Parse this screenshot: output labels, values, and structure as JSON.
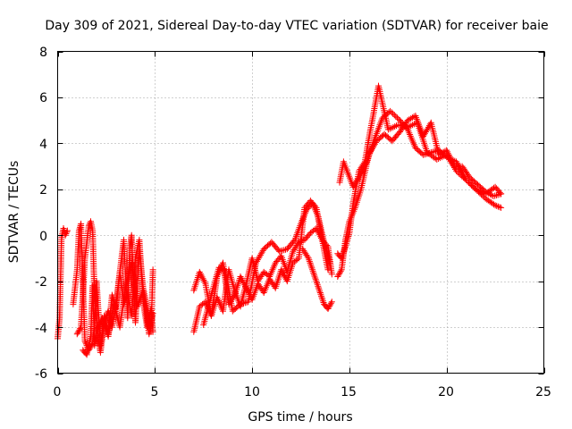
{
  "chart_data": {
    "type": "scatter",
    "title": "Day 309 of 2021, Sidereal Day-to-day VTEC variation (SDTVAR) for receiver baie",
    "xlabel": "GPS time / hours",
    "ylabel": "SDTVAR / TECUs",
    "xlim": [
      0,
      25
    ],
    "ylim": [
      -6,
      8
    ],
    "grid": true,
    "marker": "+",
    "colors": {
      "series": "#ff0000"
    },
    "x_ticks": [
      0,
      5,
      10,
      15,
      20,
      25
    ],
    "x_tick_labels": [
      "0",
      "5",
      "10",
      "15",
      "20",
      "25"
    ],
    "y_ticks": [
      -6,
      -4,
      -2,
      0,
      2,
      4,
      6,
      8
    ],
    "y_tick_labels": [
      "-6",
      "-4",
      "-2",
      "0",
      "2",
      "4",
      "6",
      "8"
    ],
    "segments": [
      {
        "name": "early-1",
        "x": [
          0.0,
          0.1,
          0.2,
          0.3,
          0.4,
          0.5
        ],
        "y": [
          -4.5,
          -3.6,
          -0.1,
          0.3,
          0.0,
          0.2
        ]
      },
      {
        "name": "early-2",
        "x": [
          0.8,
          1.0,
          1.1,
          1.2,
          1.4,
          1.6,
          1.8,
          1.9,
          2.0,
          2.2,
          2.4,
          2.6,
          2.8,
          3.0,
          3.2,
          3.4,
          3.5,
          3.6,
          3.7,
          3.8,
          3.9,
          4.0,
          4.2,
          4.4,
          4.6,
          4.8,
          4.9
        ],
        "y": [
          -3.0,
          -1.5,
          0.2,
          0.5,
          -4.6,
          -5.0,
          -4.7,
          -3.8,
          -2.0,
          -4.8,
          -3.5,
          -4.3,
          -2.6,
          -3.2,
          -1.6,
          -0.2,
          -1.9,
          -3.6,
          -0.6,
          0.0,
          -1.9,
          -3.8,
          -0.7,
          -2.3,
          -3.2,
          -4.2,
          -1.5
        ]
      },
      {
        "name": "early-3",
        "x": [
          1.0,
          1.2,
          1.4,
          1.6,
          1.7,
          1.8,
          1.9,
          2.0,
          2.1,
          2.2,
          2.4,
          2.6,
          2.8,
          3.0,
          3.2,
          3.4,
          3.6,
          3.8,
          4.0,
          4.2,
          4.4,
          4.6,
          4.8,
          4.9
        ],
        "y": [
          -4.3,
          -4.0,
          -1.0,
          0.4,
          0.6,
          0.2,
          -2.8,
          -3.6,
          -4.6,
          -5.1,
          -3.8,
          -3.3,
          -4.0,
          -3.0,
          -1.6,
          -3.0,
          -2.5,
          -3.5,
          -1.0,
          -0.2,
          -2.9,
          -4.0,
          -3.2,
          -4.2
        ]
      },
      {
        "name": "early-4",
        "x": [
          1.3,
          1.5,
          1.7,
          1.8,
          1.9,
          2.0,
          2.3,
          2.6,
          2.9,
          3.2,
          3.5,
          3.8,
          4.1,
          4.4,
          4.7,
          4.9
        ],
        "y": [
          -5.0,
          -5.2,
          -4.4,
          -2.2,
          -4.8,
          -4.2,
          -3.6,
          -4.4,
          -3.0,
          -4.0,
          -2.2,
          -1.2,
          -3.1,
          -2.4,
          -4.3,
          -3.4
        ]
      },
      {
        "name": "day-1",
        "x": [
          7.0,
          7.3,
          7.6,
          7.9,
          8.2,
          8.5,
          8.8,
          9.1,
          9.4,
          9.7,
          10.0,
          10.3,
          10.6,
          10.9,
          11.2,
          11.5,
          11.8,
          12.1,
          12.4,
          12.7,
          13.0,
          13.3,
          13.6,
          13.9,
          14.1
        ],
        "y": [
          -4.2,
          -3.1,
          -2.9,
          -3.5,
          -2.7,
          -3.3,
          -1.5,
          -2.4,
          -3.1,
          -2.1,
          -1.0,
          -2.0,
          -1.6,
          -1.8,
          -1.2,
          -0.9,
          -1.6,
          -0.7,
          -0.3,
          -0.2,
          0.1,
          0.3,
          -0.2,
          -0.5,
          -1.7
        ]
      },
      {
        "name": "day-2",
        "x": [
          7.0,
          7.3,
          7.6,
          7.9,
          8.2,
          8.5,
          8.8,
          9.1,
          9.4,
          9.7,
          10.0,
          10.3,
          10.6,
          10.9,
          11.2,
          11.5,
          11.8,
          12.1,
          12.4,
          12.7,
          13.0,
          13.3,
          13.6,
          13.9
        ],
        "y": [
          -2.4,
          -1.6,
          -2.1,
          -3.5,
          -1.8,
          -1.2,
          -3.0,
          -2.6,
          -1.8,
          -2.3,
          -2.8,
          -2.1,
          -2.5,
          -1.9,
          -2.3,
          -1.5,
          -2.0,
          -1.2,
          -1.0,
          1.2,
          1.5,
          1.2,
          -0.2,
          -1.5
        ]
      },
      {
        "name": "day-3",
        "x": [
          7.5,
          8.0,
          8.3,
          8.6,
          9.0,
          9.4,
          9.8,
          10.2,
          10.6,
          11.0,
          11.4,
          11.8,
          12.2,
          12.5,
          12.8,
          13.1,
          13.4,
          13.7,
          14.0
        ],
        "y": [
          -3.9,
          -2.3,
          -1.4,
          -1.5,
          -3.3,
          -3.0,
          -2.9,
          -1.2,
          -0.6,
          -0.3,
          -0.7,
          -0.6,
          -0.2,
          0.5,
          1.1,
          1.4,
          0.8,
          -0.3,
          -1.2
        ]
      },
      {
        "name": "day-4",
        "x": [
          12.6,
          12.9,
          13.1,
          13.3,
          13.5,
          13.7,
          13.9,
          14.1
        ],
        "y": [
          -0.6,
          -1.0,
          -1.5,
          -2.0,
          -2.5,
          -3.0,
          -3.2,
          -2.9
        ]
      },
      {
        "name": "evening-1",
        "x": [
          14.4,
          14.6,
          14.8,
          15.0,
          15.2,
          15.5,
          15.8,
          16.0,
          16.2,
          16.5,
          17.0,
          17.5,
          18.0,
          18.5,
          19.0,
          19.5,
          20.0,
          20.5,
          21.0,
          21.5,
          22.0,
          22.5,
          22.8
        ],
        "y": [
          -0.8,
          -1.0,
          -0.5,
          0.1,
          1.4,
          2.8,
          3.2,
          4.2,
          5.1,
          6.5,
          4.6,
          4.8,
          4.7,
          4.9,
          3.6,
          3.3,
          3.5,
          2.8,
          2.4,
          2.0,
          1.8,
          2.1,
          1.8
        ]
      },
      {
        "name": "evening-2",
        "x": [
          14.4,
          14.6,
          14.8,
          15.0,
          15.3,
          15.6,
          16.0,
          16.4,
          16.8,
          17.2,
          17.6,
          18.0,
          18.4,
          18.8,
          19.2,
          19.6,
          20.0,
          20.4,
          20.8,
          21.2,
          21.6,
          22.0,
          22.4,
          22.8
        ],
        "y": [
          -1.8,
          -1.5,
          -0.2,
          0.6,
          1.2,
          2.0,
          3.5,
          4.1,
          4.4,
          4.1,
          4.5,
          5.0,
          5.2,
          4.3,
          4.9,
          3.5,
          3.7,
          3.0,
          3.0,
          2.5,
          2.2,
          1.9,
          1.7,
          1.8
        ]
      },
      {
        "name": "evening-3",
        "x": [
          14.5,
          14.7,
          15.2,
          15.5,
          15.9,
          16.3,
          16.7,
          17.1,
          17.6,
          18.0,
          18.4,
          18.8,
          19.2,
          19.6,
          20.0,
          20.5,
          21.0,
          21.5,
          22.0,
          22.5,
          22.8
        ],
        "y": [
          2.3,
          3.2,
          2.1,
          2.5,
          3.2,
          4.2,
          5.1,
          5.4,
          5.0,
          4.6,
          3.8,
          3.5,
          3.6,
          3.7,
          3.4,
          3.2,
          2.4,
          2.0,
          1.6,
          1.3,
          1.2
        ]
      }
    ]
  }
}
